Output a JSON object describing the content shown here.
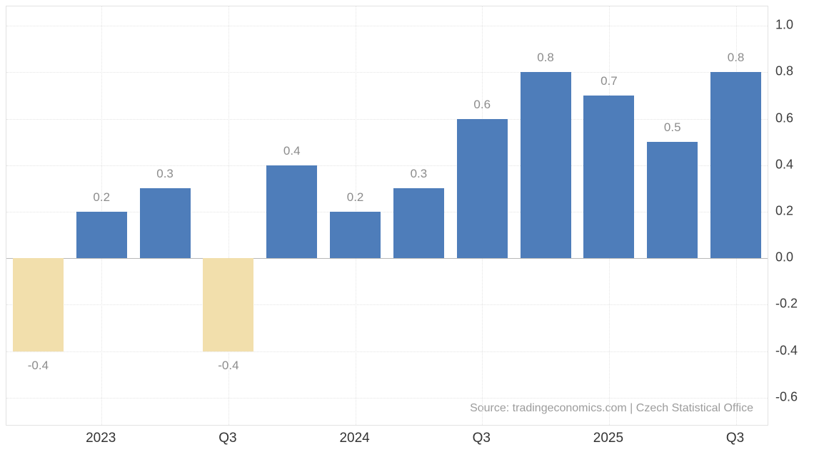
{
  "chart_data": {
    "type": "bar",
    "title": "",
    "values": [
      -0.4,
      0.2,
      0.3,
      -0.4,
      0.4,
      0.2,
      0.3,
      0.6,
      0.8,
      0.7,
      0.5,
      0.8
    ],
    "bar_labels": [
      "-0.4",
      "0.2",
      "0.3",
      "-0.4",
      "0.4",
      "0.2",
      "0.3",
      "0.6",
      "0.8",
      "0.7",
      "0.5",
      "0.8"
    ],
    "x_tick_labels": [
      "2023",
      "Q3",
      "2024",
      "Q3",
      "2025",
      "Q3"
    ],
    "x_tick_bar_indexes": [
      1,
      3,
      5,
      7,
      9,
      11
    ],
    "y_ticks": [
      1.0,
      0.8,
      0.6,
      0.4,
      0.2,
      0.0,
      -0.2,
      -0.4,
      -0.6
    ],
    "y_tick_labels": [
      "1.0",
      "0.8",
      "0.6",
      "0.4",
      "0.2",
      "0.0",
      "-0.2",
      "-0.4",
      "-0.6"
    ],
    "ylim": [
      -0.717,
      1.083
    ],
    "grid": true,
    "legend": "none",
    "colors": {
      "positive": "#4e7dba",
      "negative": "#f2dfac",
      "value_label": "#8c8c8c",
      "axis_text": "#3d3d3d",
      "grid": "#e4e4e4",
      "zero_line": "#b8b8b8",
      "border": "#e2e2e2",
      "source_text": "#9c9c9c"
    },
    "source": "Source: tradingeconomics.com | Czech Statistical Office"
  }
}
